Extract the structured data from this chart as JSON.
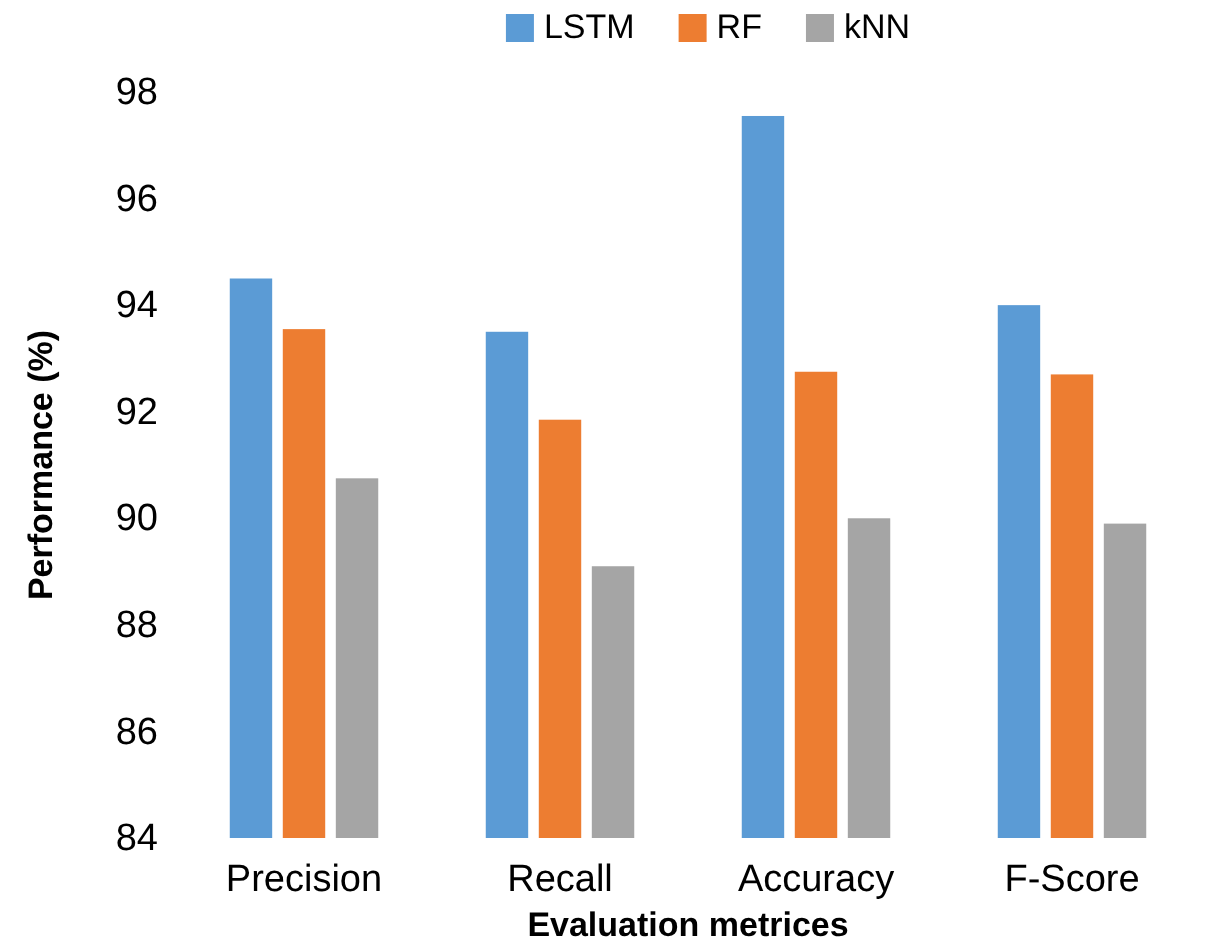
{
  "chart_data": {
    "type": "bar",
    "xlabel": "Evaluation metrices",
    "ylabel": "Performance (%)",
    "categories": [
      "Precision",
      "Recall",
      "Accuracy",
      "F-Score"
    ],
    "series": [
      {
        "name": "LSTM",
        "color": "#5b9bd5",
        "values": [
          94.5,
          93.5,
          97.55,
          94.0
        ]
      },
      {
        "name": "RF",
        "color": "#ed7d31",
        "values": [
          93.55,
          91.85,
          92.75,
          92.7
        ]
      },
      {
        "name": "kNN",
        "color": "#a5a5a5",
        "values": [
          90.75,
          89.1,
          90.0,
          89.9
        ]
      }
    ],
    "ylim": [
      84,
      98
    ],
    "yticks": [
      84,
      86,
      88,
      90,
      92,
      94,
      96,
      98
    ],
    "grid": false,
    "legend": "top"
  }
}
